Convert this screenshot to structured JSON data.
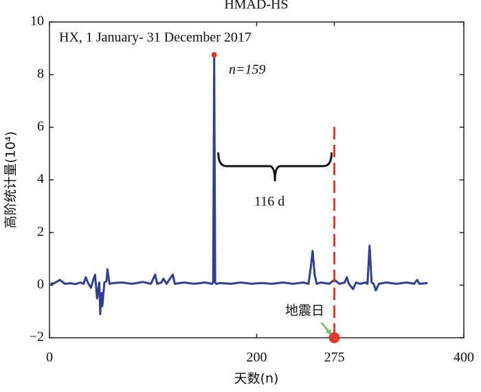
{
  "chart_data": {
    "type": "line",
    "title": "HMAD-HS",
    "x_label": "天数(n)",
    "y_label": "高阶统计量(10⁴)",
    "annotations": [
      "HX, 1  January- 31  December  2017",
      "n=159",
      "116 d",
      "地震日"
    ],
    "xlim": [
      0,
      400
    ],
    "xticks": [
      0,
      200,
      275,
      400
    ],
    "ylim": [
      -2,
      10
    ],
    "yticks": [
      {
        "value": -2,
        "label": "−2"
      },
      0,
      2,
      4,
      6,
      8,
      10
    ],
    "event_day": 275,
    "series": [
      {
        "name": "HMAD-HS",
        "color": "#2f3f94",
        "x": [
          1,
          5,
          10,
          15,
          20,
          25,
          30,
          33,
          35,
          37,
          40,
          42,
          44,
          46,
          48,
          49,
          50,
          51,
          53,
          55,
          56,
          58,
          62,
          70,
          80,
          90,
          98,
          102,
          104,
          108,
          110,
          113,
          119,
          121,
          130,
          140,
          150,
          157,
          158,
          159,
          160,
          161,
          165,
          175,
          185,
          195,
          205,
          215,
          225,
          235,
          245,
          250,
          252,
          254,
          256,
          258,
          262,
          270,
          275,
          280,
          285,
          287,
          289,
          293,
          296,
          300,
          305,
          307,
          309,
          311,
          313,
          315,
          318,
          325,
          335,
          345,
          352,
          355,
          357,
          365
        ],
        "values": [
          0.05,
          0.08,
          0.2,
          0.05,
          0.07,
          0.04,
          0.1,
          0.05,
          0.3,
          0.1,
          -0.1,
          0.15,
          0.4,
          -0.5,
          0.1,
          -1.1,
          -0.3,
          -0.8,
          0.1,
          0.15,
          0.6,
          0.05,
          0.08,
          0.1,
          0.05,
          0.12,
          0.05,
          0.4,
          0.05,
          0.1,
          0.25,
          0.05,
          0.4,
          0.05,
          0.1,
          0.05,
          0.1,
          0.05,
          0.1,
          8.75,
          0.1,
          0.05,
          0.08,
          0.05,
          0.1,
          0.05,
          0.08,
          0.05,
          0.1,
          0.05,
          0.1,
          0.05,
          0.6,
          1.3,
          0.4,
          0.05,
          0.1,
          0.05,
          0.2,
          0.05,
          0.1,
          0.3,
          0.05,
          -0.15,
          0.1,
          0.05,
          0.1,
          0.05,
          1.5,
          0.1,
          0.05,
          -0.2,
          0.05,
          0.1,
          0.05,
          0.1,
          0.05,
          0.2,
          0.05,
          0.08
        ]
      }
    ]
  }
}
